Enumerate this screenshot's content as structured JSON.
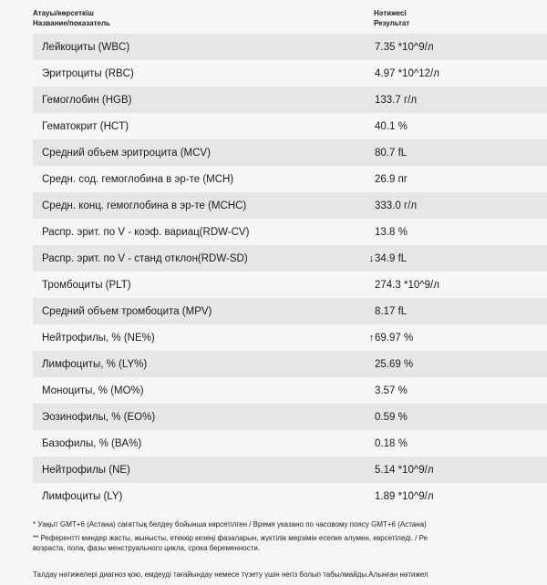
{
  "header": {
    "name_kz": "Атауы/көрсеткіш",
    "name_ru": "Название/показатель",
    "value_kz": "Нәтижесі",
    "value_ru": "Результат"
  },
  "rows": [
    {
      "name": "Лейкоциты (WBC)",
      "flag": "",
      "value": "7.35 *10^9/л"
    },
    {
      "name": "Эритроциты (RBC)",
      "flag": "",
      "value": "4.97 *10^12/л"
    },
    {
      "name": "Гемоглобин (HGB)",
      "flag": "",
      "value": "133.7 г/л"
    },
    {
      "name": "Гематокрит (HCT)",
      "flag": "",
      "value": "40.1 %"
    },
    {
      "name": "Средний объем эритроцита (MCV)",
      "flag": "",
      "value": "80.7 fL"
    },
    {
      "name": "Средн. сод. гемоглобина в эр-те (MCH)",
      "flag": "",
      "value": "26.9 пг"
    },
    {
      "name": "Средн. конц. гемоглобина в эр-те (MCHC)",
      "flag": "",
      "value": "333.0 г/л"
    },
    {
      "name": "Распр. эрит. по V - коэф. вариац(RDW-CV)",
      "flag": "",
      "value": "13.8 %"
    },
    {
      "name": "Распр. эрит. по V - станд отклон(RDW-SD)",
      "flag": "↓",
      "value": "34.9 fL"
    },
    {
      "name": "Тромбоциты (PLT)",
      "flag": "",
      "value": "274.3 *10^9/л"
    },
    {
      "name": "Средний объем тромбоцита (MPV)",
      "flag": "",
      "value": "8.17 fL"
    },
    {
      "name": "Нейтрофилы, % (NE%)",
      "flag": "↑",
      "value": "69.97 %"
    },
    {
      "name": "Лимфоциты, % (LY%)",
      "flag": "",
      "value": "25.69 %"
    },
    {
      "name": "Моноциты, % (MO%)",
      "flag": "",
      "value": "3.57 %"
    },
    {
      "name": "Эозинофилы, % (EO%)",
      "flag": "",
      "value": "0.59 %"
    },
    {
      "name": "Базофилы, % (BA%)",
      "flag": "",
      "value": "0.18 %"
    },
    {
      "name": "Нейтрофилы (NE)",
      "flag": "",
      "value": "5.14 *10^9/л"
    },
    {
      "name": "Лимфоциты (LY)",
      "flag": "",
      "value": "1.89 *10^9/л"
    }
  ],
  "footnotes": {
    "time_note": "* Уақыт GMT+6 (Астана) сағаттық белдеу бойынша көрсетілген / Время указано по часовому поясу GMT+6 (Астана)",
    "reference_note_line1": "** Референтті мәндер жасты, жынысты, етеккір кезеңі фазаларын, жүктілік мерзімін есепке алумен, көрсетіледі. / Ре",
    "reference_note_line2": "возраста, пола, фазы менструального цикла, срока беременности.",
    "conclusion": "Талдау нәтижелері диагноз қою, емдеуді тағайындау немесе түзету үшін негіз болып табылмайды.Алынған нәтижел"
  }
}
